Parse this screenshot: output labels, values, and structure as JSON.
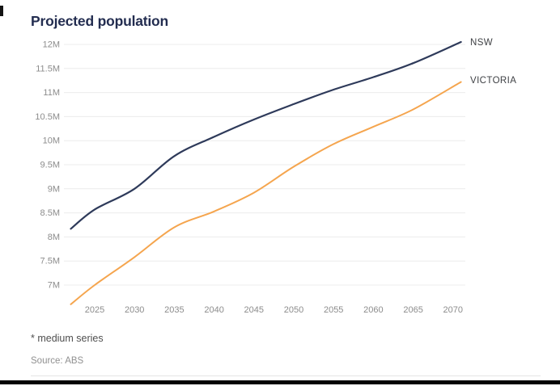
{
  "title": "Projected population",
  "footnote": "* medium series",
  "source": "Source: ABS",
  "colors": {
    "title_text": "#232d50",
    "axis_text": "#8c8c8c",
    "gridline": "#ececec",
    "nsw_line": "#2e3a5a",
    "victoria_line": "#f5a54e",
    "series_label_text": "#3f4145",
    "footnote_text": "#4f4f4f",
    "source_text": "#909090",
    "divider": "#e4e4e4",
    "bottom_bar": "#040404",
    "left_mark": "#141414",
    "background": "#ffffff"
  },
  "chart_data": {
    "type": "line",
    "title": "Projected population",
    "xlabel": "",
    "ylabel": "",
    "grid": true,
    "legend_position": "line-end-labels-right",
    "xlim": [
      2022,
      2071
    ],
    "ylim": [
      6.5,
      12.2
    ],
    "x": [
      2022,
      2025,
      2030,
      2035,
      2040,
      2045,
      2050,
      2055,
      2060,
      2065,
      2071
    ],
    "series": [
      {
        "name": "NSW",
        "color": "#2e3a5a",
        "values": [
          8.17,
          8.57,
          9.0,
          9.68,
          10.08,
          10.44,
          10.76,
          11.06,
          11.32,
          11.61,
          12.05
        ]
      },
      {
        "name": "VICTORIA",
        "color": "#f5a54e",
        "values": [
          6.6,
          7.0,
          7.58,
          8.2,
          8.53,
          8.92,
          9.46,
          9.93,
          10.29,
          10.65,
          11.22
        ]
      }
    ],
    "y_ticks": [
      "12M",
      "11.5M",
      "11M",
      "10.5M",
      "10M",
      "9.5M",
      "9M",
      "8.5M",
      "8M",
      "7.5M",
      "7M"
    ],
    "y_tick_values": [
      12,
      11.5,
      11,
      10.5,
      10,
      9.5,
      9,
      8.5,
      8,
      7.5,
      7
    ],
    "x_ticks": [
      2025,
      2030,
      2035,
      2040,
      2045,
      2050,
      2055,
      2060,
      2065,
      2070
    ]
  }
}
